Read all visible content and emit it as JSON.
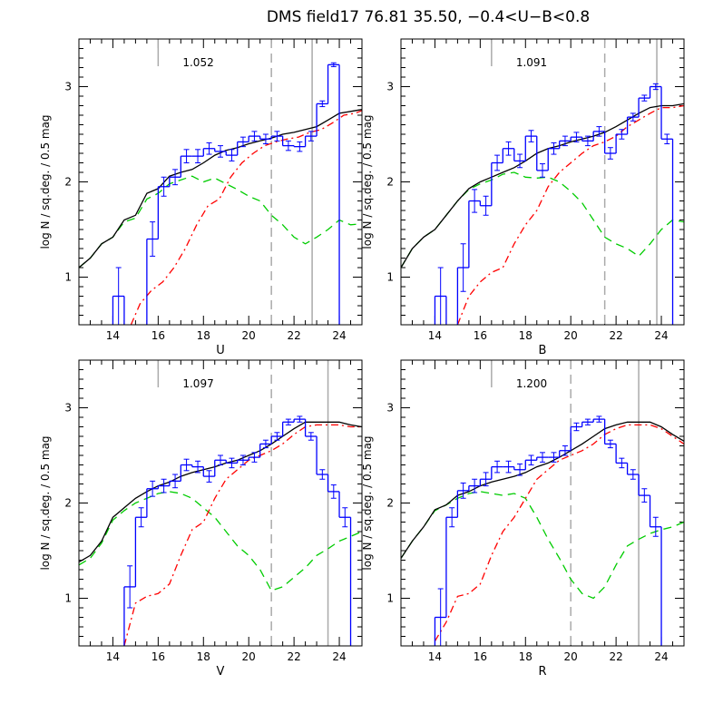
{
  "figure_title": "DMS field17 76.81 35.50, −0.4<U−B<0.8",
  "chart_data": [
    {
      "type": "line",
      "title": "",
      "xlabel": "U",
      "ylabel": "log N / sq.deg. / 0.5 mag",
      "annotation": "1.052",
      "xlim": [
        12.5,
        25
      ],
      "ylim": [
        0.5,
        3.5
      ],
      "xticks": [
        "14",
        "16",
        "18",
        "20",
        "22",
        "24"
      ],
      "yticks": [
        "1",
        "2",
        "3"
      ],
      "vlines": [
        {
          "x": 16.0,
          "style": "short-solid",
          "color": "#aaaaaa"
        },
        {
          "x": 21.0,
          "style": "dashed",
          "color": "#aaaaaa"
        },
        {
          "x": 22.8,
          "style": "solid",
          "color": "#aaaaaa"
        }
      ],
      "model_total": {
        "color": "#000000",
        "style": "solid",
        "x": [
          12.5,
          13,
          13.5,
          14,
          14.5,
          15,
          15.5,
          16,
          16.5,
          17,
          17.5,
          18,
          18.5,
          19,
          19.5,
          20,
          20.5,
          21,
          21.5,
          22,
          22.5,
          23,
          23.5,
          24,
          24.5,
          25
        ],
        "y": [
          1.1,
          1.2,
          1.35,
          1.42,
          1.6,
          1.65,
          1.88,
          1.93,
          2.06,
          2.1,
          2.13,
          2.2,
          2.28,
          2.33,
          2.36,
          2.4,
          2.43,
          2.46,
          2.5,
          2.52,
          2.55,
          2.58,
          2.65,
          2.72,
          2.74,
          2.76
        ]
      },
      "model_disk": {
        "color": "#ff0000",
        "style": "dashdot",
        "x": [
          14.8,
          15.2,
          15.7,
          16.2,
          16.7,
          17.2,
          17.7,
          18.2,
          18.7,
          19.2,
          19.7,
          20.2,
          20.7,
          21.2,
          21.7,
          22.2,
          22.7,
          23.2,
          23.7,
          24.2,
          24.7,
          25
        ],
        "y": [
          0.5,
          0.72,
          0.86,
          0.95,
          1.1,
          1.3,
          1.55,
          1.75,
          1.82,
          2.05,
          2.2,
          2.3,
          2.38,
          2.42,
          2.45,
          2.47,
          2.52,
          2.55,
          2.62,
          2.7,
          2.72,
          2.75
        ]
      },
      "model_halo": {
        "color": "#00cc00",
        "style": "dashed",
        "x": [
          12.5,
          13,
          13.5,
          14,
          14.5,
          15,
          15.5,
          16,
          16.5,
          17,
          17.5,
          18,
          18.5,
          19,
          19.5,
          20,
          20.5,
          21,
          21.5,
          22,
          22.5,
          23,
          23.5,
          24,
          24.5,
          25
        ],
        "y": [
          1.1,
          1.2,
          1.35,
          1.42,
          1.58,
          1.62,
          1.82,
          1.88,
          1.98,
          2.02,
          2.06,
          2.0,
          2.04,
          1.98,
          1.92,
          1.85,
          1.8,
          1.65,
          1.55,
          1.42,
          1.35,
          1.42,
          1.5,
          1.6,
          1.55,
          1.56
        ]
      },
      "data_hist": {
        "color": "#0000ff",
        "x": [
          14.25,
          14.75,
          15.25,
          15.75,
          16.25,
          16.75,
          17.25,
          17.75,
          18.25,
          18.75,
          19.25,
          19.75,
          20.25,
          20.75,
          21.25,
          21.75,
          22.25,
          22.75,
          23.25,
          23.75
        ],
        "y": [
          0.8,
          null,
          null,
          1.4,
          1.95,
          2.05,
          2.27,
          2.27,
          2.35,
          2.32,
          2.28,
          2.42,
          2.48,
          2.45,
          2.48,
          2.38,
          2.37,
          2.48,
          2.82,
          3.23
        ],
        "err": [
          0.3,
          0,
          0,
          0.18,
          0.1,
          0.08,
          0.07,
          0.07,
          0.06,
          0.06,
          0.06,
          0.05,
          0.05,
          0.05,
          0.05,
          0.05,
          0.05,
          0.05,
          0.03,
          0.02
        ]
      }
    },
    {
      "type": "line",
      "title": "",
      "xlabel": "B",
      "ylabel": "log N / sq.deg. / 0.5 mag",
      "annotation": "1.091",
      "xlim": [
        12.5,
        25
      ],
      "ylim": [
        0.5,
        3.5
      ],
      "xticks": [
        "14",
        "16",
        "18",
        "20",
        "22",
        "24"
      ],
      "yticks": [
        "1",
        "2",
        "3"
      ],
      "vlines": [
        {
          "x": 16.5,
          "style": "short-solid",
          "color": "#aaaaaa"
        },
        {
          "x": 21.5,
          "style": "dashed",
          "color": "#aaaaaa"
        },
        {
          "x": 23.8,
          "style": "solid",
          "color": "#aaaaaa"
        }
      ],
      "model_total": {
        "color": "#000000",
        "style": "solid",
        "x": [
          12.5,
          13,
          13.5,
          14,
          14.5,
          15,
          15.5,
          16,
          16.5,
          17,
          17.5,
          18,
          18.5,
          19,
          19.5,
          20,
          20.5,
          21,
          21.5,
          22,
          22.5,
          23,
          23.5,
          24,
          24.5,
          25
        ],
        "y": [
          1.1,
          1.3,
          1.42,
          1.5,
          1.65,
          1.8,
          1.93,
          2.0,
          2.05,
          2.1,
          2.15,
          2.22,
          2.3,
          2.35,
          2.38,
          2.42,
          2.45,
          2.48,
          2.52,
          2.58,
          2.65,
          2.72,
          2.78,
          2.8,
          2.8,
          2.82
        ]
      },
      "model_disk": {
        "color": "#ff0000",
        "style": "dashdot",
        "x": [
          15,
          15.5,
          16,
          16.5,
          17,
          17.5,
          18,
          18.5,
          19,
          19.5,
          20,
          20.5,
          21,
          21.5,
          22,
          22.5,
          23,
          23.5,
          24,
          24.5,
          25
        ],
        "y": [
          0.5,
          0.8,
          0.95,
          1.05,
          1.1,
          1.35,
          1.55,
          1.7,
          1.95,
          2.1,
          2.2,
          2.3,
          2.38,
          2.42,
          2.48,
          2.58,
          2.65,
          2.72,
          2.78,
          2.78,
          2.8
        ]
      },
      "model_halo": {
        "color": "#00cc00",
        "style": "dashed",
        "x": [
          12.5,
          13,
          13.5,
          14,
          14.5,
          15,
          15.5,
          16,
          16.5,
          17,
          17.5,
          18,
          18.5,
          19,
          19.5,
          20,
          20.5,
          21,
          21.5,
          22,
          22.5,
          23,
          23.5,
          24,
          24.5,
          25
        ],
        "y": [
          1.1,
          1.3,
          1.42,
          1.5,
          1.65,
          1.8,
          1.92,
          1.98,
          2.02,
          2.08,
          2.1,
          2.05,
          2.04,
          2.05,
          2.0,
          1.9,
          1.78,
          1.6,
          1.42,
          1.35,
          1.3,
          1.22,
          1.35,
          1.5,
          1.6,
          1.58
        ]
      },
      "data_hist": {
        "color": "#0000ff",
        "x": [
          14.25,
          14.75,
          15.25,
          15.75,
          16.25,
          16.75,
          17.25,
          17.75,
          18.25,
          18.75,
          19.25,
          19.75,
          20.25,
          20.75,
          21.25,
          21.75,
          22.25,
          22.75,
          23.25,
          23.75,
          24.25
        ],
        "y": [
          0.8,
          null,
          1.1,
          1.8,
          1.75,
          2.2,
          2.35,
          2.22,
          2.48,
          2.12,
          2.35,
          2.43,
          2.47,
          2.43,
          2.53,
          2.3,
          2.5,
          2.68,
          2.88,
          3.0,
          2.45
        ],
        "err": [
          0.3,
          0,
          0.25,
          0.12,
          0.1,
          0.08,
          0.07,
          0.07,
          0.06,
          0.07,
          0.06,
          0.05,
          0.05,
          0.05,
          0.05,
          0.06,
          0.05,
          0.04,
          0.03,
          0.03,
          0.05
        ]
      }
    },
    {
      "type": "line",
      "title": "",
      "xlabel": "V",
      "ylabel": "log N / sq.deg. / 0.5 mag",
      "annotation": "1.097",
      "xlim": [
        12.5,
        25
      ],
      "ylim": [
        0.5,
        3.5
      ],
      "xticks": [
        "14",
        "16",
        "18",
        "20",
        "22",
        "24"
      ],
      "yticks": [
        "1",
        "2",
        "3"
      ],
      "vlines": [
        {
          "x": 16.0,
          "style": "short-solid",
          "color": "#aaaaaa"
        },
        {
          "x": 21.0,
          "style": "dashed",
          "color": "#aaaaaa"
        },
        {
          "x": 23.5,
          "style": "solid",
          "color": "#aaaaaa"
        }
      ],
      "model_total": {
        "color": "#000000",
        "style": "solid",
        "x": [
          12.5,
          13,
          13.5,
          14,
          14.5,
          15,
          15.5,
          16,
          16.5,
          17,
          17.5,
          18,
          18.5,
          19,
          19.5,
          20,
          20.5,
          21,
          21.5,
          22,
          22.5,
          23,
          23.5,
          24,
          24.5,
          25
        ],
        "y": [
          1.38,
          1.45,
          1.6,
          1.85,
          1.95,
          2.05,
          2.12,
          2.18,
          2.22,
          2.28,
          2.32,
          2.35,
          2.38,
          2.42,
          2.45,
          2.5,
          2.55,
          2.62,
          2.7,
          2.78,
          2.85,
          2.85,
          2.85,
          2.85,
          2.82,
          2.8
        ]
      },
      "model_disk": {
        "color": "#ff0000",
        "style": "dashdot",
        "x": [
          14.5,
          15,
          15.5,
          16,
          16.5,
          17,
          17.5,
          18,
          18.5,
          19,
          19.5,
          20,
          20.5,
          21,
          21.5,
          22,
          22.5,
          23,
          23.5,
          24,
          24.5,
          25
        ],
        "y": [
          0.5,
          0.95,
          1.02,
          1.05,
          1.15,
          1.45,
          1.72,
          1.8,
          2.05,
          2.25,
          2.35,
          2.45,
          2.5,
          2.55,
          2.62,
          2.72,
          2.8,
          2.82,
          2.82,
          2.82,
          2.8,
          2.8
        ]
      },
      "model_halo": {
        "color": "#00cc00",
        "style": "dashed",
        "x": [
          12.5,
          13,
          13.5,
          14,
          14.5,
          15,
          15.5,
          16,
          16.5,
          17,
          17.5,
          18,
          18.5,
          19,
          19.5,
          20,
          20.5,
          21,
          21.5,
          22,
          22.5,
          23,
          23.5,
          24,
          24.5,
          25
        ],
        "y": [
          1.35,
          1.42,
          1.58,
          1.82,
          1.92,
          2.0,
          2.05,
          2.1,
          2.12,
          2.1,
          2.05,
          1.95,
          1.85,
          1.7,
          1.55,
          1.45,
          1.3,
          1.08,
          1.12,
          1.22,
          1.32,
          1.45,
          1.52,
          1.6,
          1.65,
          1.7
        ]
      },
      "data_hist": {
        "color": "#0000ff",
        "x": [
          14.75,
          15.25,
          15.75,
          16.25,
          16.75,
          17.25,
          17.75,
          18.25,
          18.75,
          19.25,
          19.75,
          20.25,
          20.75,
          21.25,
          21.75,
          22.25,
          22.75,
          23.25,
          23.75,
          24.25
        ],
        "y": [
          1.12,
          1.85,
          2.15,
          2.18,
          2.23,
          2.4,
          2.38,
          2.28,
          2.45,
          2.42,
          2.45,
          2.48,
          2.62,
          2.7,
          2.85,
          2.88,
          2.7,
          2.3,
          2.12,
          1.85
        ],
        "err": [
          0.22,
          0.1,
          0.08,
          0.07,
          0.07,
          0.06,
          0.06,
          0.06,
          0.05,
          0.05,
          0.05,
          0.05,
          0.04,
          0.04,
          0.03,
          0.03,
          0.04,
          0.05,
          0.07,
          0.1
        ]
      }
    },
    {
      "type": "line",
      "title": "",
      "xlabel": "R",
      "ylabel": "log N / sq.deg. / 0.5 mag",
      "annotation": "1.200",
      "xlim": [
        12.5,
        25
      ],
      "ylim": [
        0.5,
        3.5
      ],
      "xticks": [
        "14",
        "16",
        "18",
        "20",
        "22",
        "24"
      ],
      "yticks": [
        "1",
        "2",
        "3"
      ],
      "vlines": [
        {
          "x": 16.5,
          "style": "short-solid",
          "color": "#aaaaaa"
        },
        {
          "x": 20.0,
          "style": "dashed",
          "color": "#aaaaaa"
        },
        {
          "x": 23.0,
          "style": "solid",
          "color": "#aaaaaa"
        }
      ],
      "model_total": {
        "color": "#000000",
        "style": "solid",
        "x": [
          12.5,
          13,
          13.5,
          14,
          14.5,
          15,
          15.5,
          16,
          16.5,
          17,
          17.5,
          18,
          18.5,
          19,
          19.5,
          20,
          20.5,
          21,
          21.5,
          22,
          22.5,
          23,
          23.5,
          24,
          24.5,
          25
        ],
        "y": [
          1.42,
          1.6,
          1.75,
          1.93,
          1.98,
          2.08,
          2.12,
          2.18,
          2.22,
          2.25,
          2.28,
          2.32,
          2.38,
          2.42,
          2.48,
          2.55,
          2.62,
          2.7,
          2.78,
          2.82,
          2.85,
          2.85,
          2.85,
          2.8,
          2.72,
          2.65
        ]
      },
      "model_disk": {
        "color": "#ff0000",
        "style": "dashdot",
        "x": [
          14,
          14.5,
          15,
          15.5,
          16,
          16.5,
          17,
          17.5,
          18,
          18.5,
          19,
          19.5,
          20,
          20.5,
          21,
          21.5,
          22,
          22.5,
          23,
          23.5,
          24,
          24.5,
          25
        ],
        "y": [
          0.55,
          0.75,
          1.02,
          1.05,
          1.15,
          1.45,
          1.7,
          1.85,
          2.05,
          2.25,
          2.35,
          2.45,
          2.5,
          2.55,
          2.62,
          2.72,
          2.78,
          2.82,
          2.82,
          2.82,
          2.78,
          2.7,
          2.62
        ]
      },
      "model_halo": {
        "color": "#00cc00",
        "style": "dashed",
        "x": [
          12.5,
          13,
          13.5,
          14,
          14.5,
          15,
          15.5,
          16,
          16.5,
          17,
          17.5,
          18,
          18.5,
          19,
          19.5,
          20,
          20.5,
          21,
          21.5,
          22,
          22.5,
          23,
          23.5,
          24,
          24.5,
          25
        ],
        "y": [
          1.42,
          1.6,
          1.75,
          1.92,
          1.98,
          2.05,
          2.1,
          2.12,
          2.1,
          2.08,
          2.1,
          2.05,
          1.85,
          1.62,
          1.42,
          1.2,
          1.05,
          1.0,
          1.12,
          1.35,
          1.55,
          1.62,
          1.68,
          1.72,
          1.75,
          1.8
        ]
      },
      "data_hist": {
        "color": "#0000ff",
        "x": [
          14.25,
          14.75,
          15.25,
          15.75,
          16.25,
          16.75,
          17.25,
          17.75,
          18.25,
          18.75,
          19.25,
          19.75,
          20.25,
          20.75,
          21.25,
          21.75,
          22.25,
          22.75,
          23.25,
          23.75
        ],
        "y": [
          0.8,
          1.85,
          2.13,
          2.18,
          2.25,
          2.38,
          2.38,
          2.35,
          2.45,
          2.48,
          2.48,
          2.55,
          2.8,
          2.85,
          2.88,
          2.62,
          2.42,
          2.3,
          2.08,
          1.75
        ],
        "err": [
          0.3,
          0.1,
          0.08,
          0.07,
          0.07,
          0.06,
          0.06,
          0.06,
          0.05,
          0.05,
          0.05,
          0.05,
          0.04,
          0.03,
          0.03,
          0.04,
          0.05,
          0.05,
          0.07,
          0.1
        ]
      }
    }
  ]
}
